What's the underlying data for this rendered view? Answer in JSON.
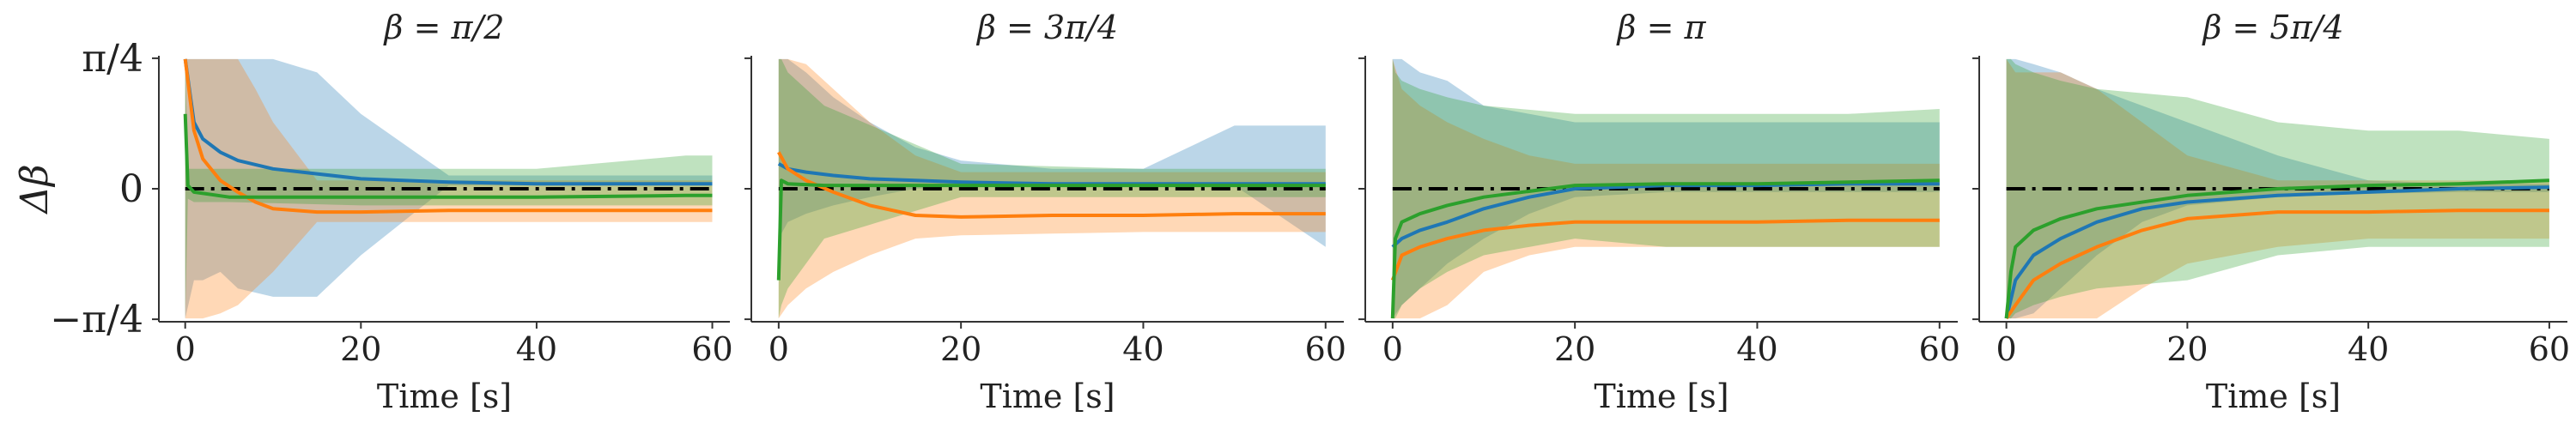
{
  "chart_data": {
    "type": "line",
    "ylabel": "Δβ",
    "y_ticks": [
      "π/4",
      "0",
      "−π/4"
    ],
    "y_tick_values": [
      0.785,
      0,
      -0.785
    ],
    "ylim": [
      -0.8,
      0.8
    ],
    "x_ticks": [
      "0",
      "20",
      "40",
      "60"
    ],
    "x_tick_values": [
      0,
      20,
      40,
      60
    ],
    "xlim": [
      -3,
      62
    ],
    "grid": false,
    "colors": {
      "blue": "#1f77b4",
      "orange": "#ff7f0e",
      "green": "#2ca02c",
      "reference": "#000000"
    },
    "panels": [
      {
        "title": "β = π/2",
        "xlabel": "Time [s]",
        "series": [
          {
            "color": "blue",
            "x": [
              0,
              1,
              2,
              4,
              6,
              10,
              15,
              20,
              30,
              40,
              50,
              60
            ],
            "y": [
              0.78,
              0.4,
              0.3,
              0.22,
              0.17,
              0.12,
              0.09,
              0.06,
              0.04,
              0.03,
              0.03,
              0.03
            ],
            "lower": [
              -0.78,
              -0.55,
              -0.55,
              -0.5,
              -0.6,
              -0.65,
              -0.65,
              -0.4,
              0.02,
              0.02,
              0.02,
              0.02
            ],
            "upper": [
              0.78,
              0.78,
              0.78,
              0.78,
              0.78,
              0.78,
              0.7,
              0.45,
              0.08,
              0.08,
              0.08,
              0.08
            ]
          },
          {
            "color": "orange",
            "x": [
              0,
              1,
              2,
              4,
              6,
              8,
              10,
              15,
              20,
              30,
              40,
              50,
              60
            ],
            "y": [
              0.78,
              0.35,
              0.18,
              0.05,
              -0.02,
              -0.08,
              -0.12,
              -0.14,
              -0.14,
              -0.13,
              -0.13,
              -0.13,
              -0.13
            ],
            "lower": [
              -0.78,
              -0.78,
              -0.78,
              -0.75,
              -0.7,
              -0.6,
              -0.5,
              -0.2,
              -0.2,
              -0.2,
              -0.2,
              -0.2,
              -0.2
            ],
            "upper": [
              0.78,
              0.78,
              0.78,
              0.78,
              0.78,
              0.6,
              0.4,
              0.05,
              0.05,
              0.05,
              0.05,
              0.05,
              0.05
            ]
          },
          {
            "color": "green",
            "x": [
              0,
              0.3,
              1,
              5,
              20,
              40,
              57,
              60
            ],
            "y": [
              0.45,
              0.02,
              -0.02,
              -0.05,
              -0.05,
              -0.05,
              -0.04,
              -0.04
            ],
            "lower": [
              -0.78,
              -0.06,
              -0.08,
              -0.08,
              -0.1,
              -0.1,
              -0.1,
              -0.1
            ],
            "upper": [
              0.78,
              0.12,
              0.12,
              0.12,
              0.12,
              0.12,
              0.2,
              0.2
            ]
          }
        ]
      },
      {
        "title": "β = 3π/4",
        "xlabel": "Time [s]",
        "series": [
          {
            "color": "blue",
            "x": [
              0,
              1,
              3,
              6,
              10,
              15,
              20,
              30,
              40,
              50,
              60
            ],
            "y": [
              0.15,
              0.12,
              0.1,
              0.08,
              0.06,
              0.05,
              0.04,
              0.03,
              0.03,
              0.03,
              0.03
            ],
            "lower": [
              -0.3,
              -0.2,
              -0.15,
              -0.1,
              -0.05,
              0.0,
              0.02,
              0.02,
              0.02,
              0.02,
              -0.35
            ],
            "upper": [
              0.78,
              0.78,
              0.7,
              0.55,
              0.4,
              0.25,
              0.17,
              0.12,
              0.12,
              0.38,
              0.38
            ]
          },
          {
            "color": "orange",
            "x": [
              0,
              1,
              3,
              6,
              10,
              15,
              20,
              30,
              40,
              50,
              60
            ],
            "y": [
              0.22,
              0.12,
              0.05,
              -0.02,
              -0.1,
              -0.16,
              -0.17,
              -0.16,
              -0.16,
              -0.15,
              -0.15
            ],
            "lower": [
              -0.78,
              -0.7,
              -0.6,
              -0.5,
              -0.4,
              -0.3,
              -0.28,
              -0.27,
              -0.26,
              -0.26,
              -0.26
            ],
            "upper": [
              0.78,
              0.78,
              0.75,
              0.6,
              0.4,
              0.2,
              0.1,
              0.1,
              0.1,
              0.1,
              0.1
            ]
          },
          {
            "color": "green",
            "x": [
              0,
              0.3,
              1,
              5,
              20,
              40,
              60
            ],
            "y": [
              -0.55,
              0.05,
              0.03,
              0.02,
              0.02,
              0.02,
              0.02
            ],
            "lower": [
              -0.78,
              -0.7,
              -0.6,
              -0.3,
              -0.05,
              -0.05,
              -0.05
            ],
            "upper": [
              0.78,
              0.78,
              0.7,
              0.5,
              0.15,
              0.12,
              0.12
            ]
          }
        ]
      },
      {
        "title": "β = π",
        "xlabel": "Time [s]",
        "series": [
          {
            "color": "blue",
            "x": [
              0,
              1,
              3,
              6,
              10,
              15,
              20,
              30,
              40,
              50,
              60
            ],
            "y": [
              -0.35,
              -0.3,
              -0.25,
              -0.2,
              -0.12,
              -0.05,
              0.0,
              0.02,
              0.02,
              0.03,
              0.03
            ],
            "lower": [
              -0.78,
              -0.7,
              -0.6,
              -0.45,
              -0.3,
              -0.15,
              -0.05,
              -0.02,
              -0.02,
              -0.02,
              -0.02
            ],
            "upper": [
              0.78,
              0.78,
              0.7,
              0.65,
              0.5,
              0.45,
              0.4,
              0.4,
              0.4,
              0.4,
              0.4
            ]
          },
          {
            "color": "orange",
            "x": [
              0,
              1,
              3,
              6,
              10,
              15,
              20,
              30,
              40,
              50,
              60
            ],
            "y": [
              -0.55,
              -0.4,
              -0.35,
              -0.3,
              -0.25,
              -0.22,
              -0.2,
              -0.2,
              -0.2,
              -0.19,
              -0.19
            ],
            "lower": [
              -0.78,
              -0.78,
              -0.78,
              -0.7,
              -0.5,
              -0.4,
              -0.35,
              -0.35,
              -0.35,
              -0.35,
              -0.35
            ],
            "upper": [
              0.78,
              0.6,
              0.5,
              0.4,
              0.3,
              0.2,
              0.15,
              0.15,
              0.15,
              0.15,
              0.15
            ]
          },
          {
            "color": "green",
            "x": [
              0,
              0.3,
              1,
              3,
              6,
              10,
              20,
              30,
              40,
              50,
              60
            ],
            "y": [
              -0.78,
              -0.3,
              -0.2,
              -0.15,
              -0.1,
              -0.05,
              0.02,
              0.03,
              0.03,
              0.04,
              0.05
            ],
            "lower": [
              -0.78,
              -0.78,
              -0.7,
              -0.6,
              -0.5,
              -0.4,
              -0.3,
              -0.35,
              -0.35,
              -0.35,
              -0.35
            ],
            "upper": [
              0.78,
              0.7,
              0.65,
              0.6,
              0.55,
              0.5,
              0.45,
              0.45,
              0.45,
              0.45,
              0.48
            ]
          }
        ]
      },
      {
        "title": "β = 5π/4",
        "xlabel": "Time [s]",
        "series": [
          {
            "color": "blue",
            "x": [
              0,
              1,
              3,
              6,
              10,
              15,
              20,
              30,
              40,
              50,
              60
            ],
            "y": [
              -0.78,
              -0.55,
              -0.4,
              -0.3,
              -0.2,
              -0.12,
              -0.08,
              -0.04,
              -0.02,
              0.0,
              0.01
            ],
            "lower": [
              -0.78,
              -0.78,
              -0.75,
              -0.6,
              -0.4,
              -0.2,
              -0.1,
              -0.05,
              -0.03,
              -0.02,
              -0.02
            ],
            "upper": [
              0.78,
              0.78,
              0.75,
              0.7,
              0.6,
              0.5,
              0.4,
              0.2,
              0.05,
              0.03,
              0.03
            ]
          },
          {
            "color": "orange",
            "x": [
              0,
              1,
              3,
              6,
              10,
              15,
              20,
              30,
              40,
              50,
              60
            ],
            "y": [
              -0.78,
              -0.7,
              -0.55,
              -0.45,
              -0.35,
              -0.25,
              -0.18,
              -0.14,
              -0.14,
              -0.13,
              -0.13
            ],
            "lower": [
              -0.78,
              -0.78,
              -0.78,
              -0.78,
              -0.78,
              -0.6,
              -0.45,
              -0.35,
              -0.3,
              -0.3,
              -0.3
            ],
            "upper": [
              0.78,
              0.7,
              0.7,
              0.7,
              0.6,
              0.4,
              0.2,
              0.05,
              0.05,
              0.05,
              0.05
            ]
          },
          {
            "color": "green",
            "x": [
              0,
              0.5,
              1,
              3,
              6,
              10,
              20,
              30,
              40,
              50,
              60
            ],
            "y": [
              -0.78,
              -0.5,
              -0.35,
              -0.25,
              -0.18,
              -0.12,
              -0.04,
              0.0,
              0.02,
              0.03,
              0.05
            ],
            "lower": [
              -0.78,
              -0.78,
              -0.75,
              -0.7,
              -0.65,
              -0.6,
              -0.55,
              -0.4,
              -0.35,
              -0.35,
              -0.35
            ],
            "upper": [
              0.78,
              0.78,
              0.75,
              0.7,
              0.65,
              0.6,
              0.55,
              0.4,
              0.35,
              0.35,
              0.3
            ]
          }
        ]
      }
    ]
  }
}
